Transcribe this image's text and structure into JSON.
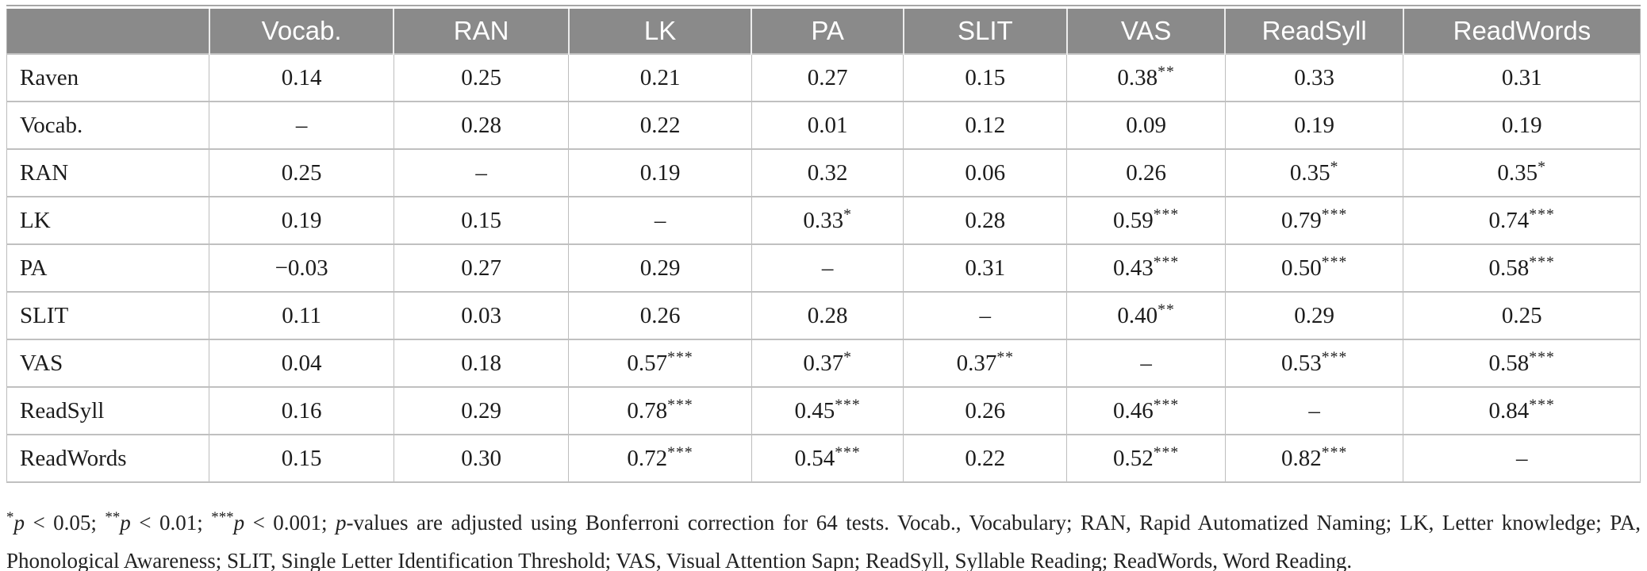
{
  "table": {
    "header": [
      "",
      "Vocab.",
      "RAN",
      "LK",
      "PA",
      "SLIT",
      "VAS",
      "ReadSyll",
      "ReadWords"
    ],
    "rows": [
      {
        "label": "Raven",
        "cells": [
          "0.14",
          "0.25",
          "0.21",
          "0.27",
          "0.15",
          "0.38**",
          "0.33",
          "0.31"
        ]
      },
      {
        "label": "Vocab.",
        "cells": [
          "–",
          "0.28",
          "0.22",
          "0.01",
          "0.12",
          "0.09",
          "0.19",
          "0.19"
        ]
      },
      {
        "label": "RAN",
        "cells": [
          "0.25",
          "–",
          "0.19",
          "0.32",
          "0.06",
          "0.26",
          "0.35*",
          "0.35*"
        ]
      },
      {
        "label": "LK",
        "cells": [
          "0.19",
          "0.15",
          "–",
          "0.33*",
          "0.28",
          "0.59***",
          "0.79***",
          "0.74***"
        ]
      },
      {
        "label": "PA",
        "cells": [
          "−0.03",
          "0.27",
          "0.29",
          "–",
          "0.31",
          "0.43***",
          "0.50***",
          "0.58***"
        ]
      },
      {
        "label": "SLIT",
        "cells": [
          "0.11",
          "0.03",
          "0.26",
          "0.28",
          "–",
          "0.40**",
          "0.29",
          "0.25"
        ]
      },
      {
        "label": "VAS",
        "cells": [
          "0.04",
          "0.18",
          "0.57***",
          "0.37*",
          "0.37**",
          "–",
          "0.53***",
          "0.58***"
        ]
      },
      {
        "label": "ReadSyll",
        "cells": [
          "0.16",
          "0.29",
          "0.78***",
          "0.45***",
          "0.26",
          "0.46***",
          "–",
          "0.84***"
        ]
      },
      {
        "label": "ReadWords",
        "cells": [
          "0.15",
          "0.30",
          "0.72***",
          "0.54***",
          "0.22",
          "0.52***",
          "0.82***",
          "–"
        ]
      }
    ]
  },
  "footnote": "*p < 0.05; **p < 0.01; ***p < 0.001; p-values are adjusted using Bonferroni correction for 64 tests. Vocab., Vocabulary; RAN, Rapid Automatized Naming; LK, Letter knowledge; PA, Phonological Awareness; SLIT, Single Letter Identification Threshold; VAS, Visual Attention Sapn; ReadSyll, Syllable Reading; ReadWords, Word Reading.",
  "colors": {
    "header_bg": "#8a8a8a",
    "header_text": "#ffffff",
    "grid_line": "#c0c0c0",
    "outer_line": "#9e9e9e",
    "body_text": "#1c1c1c"
  }
}
